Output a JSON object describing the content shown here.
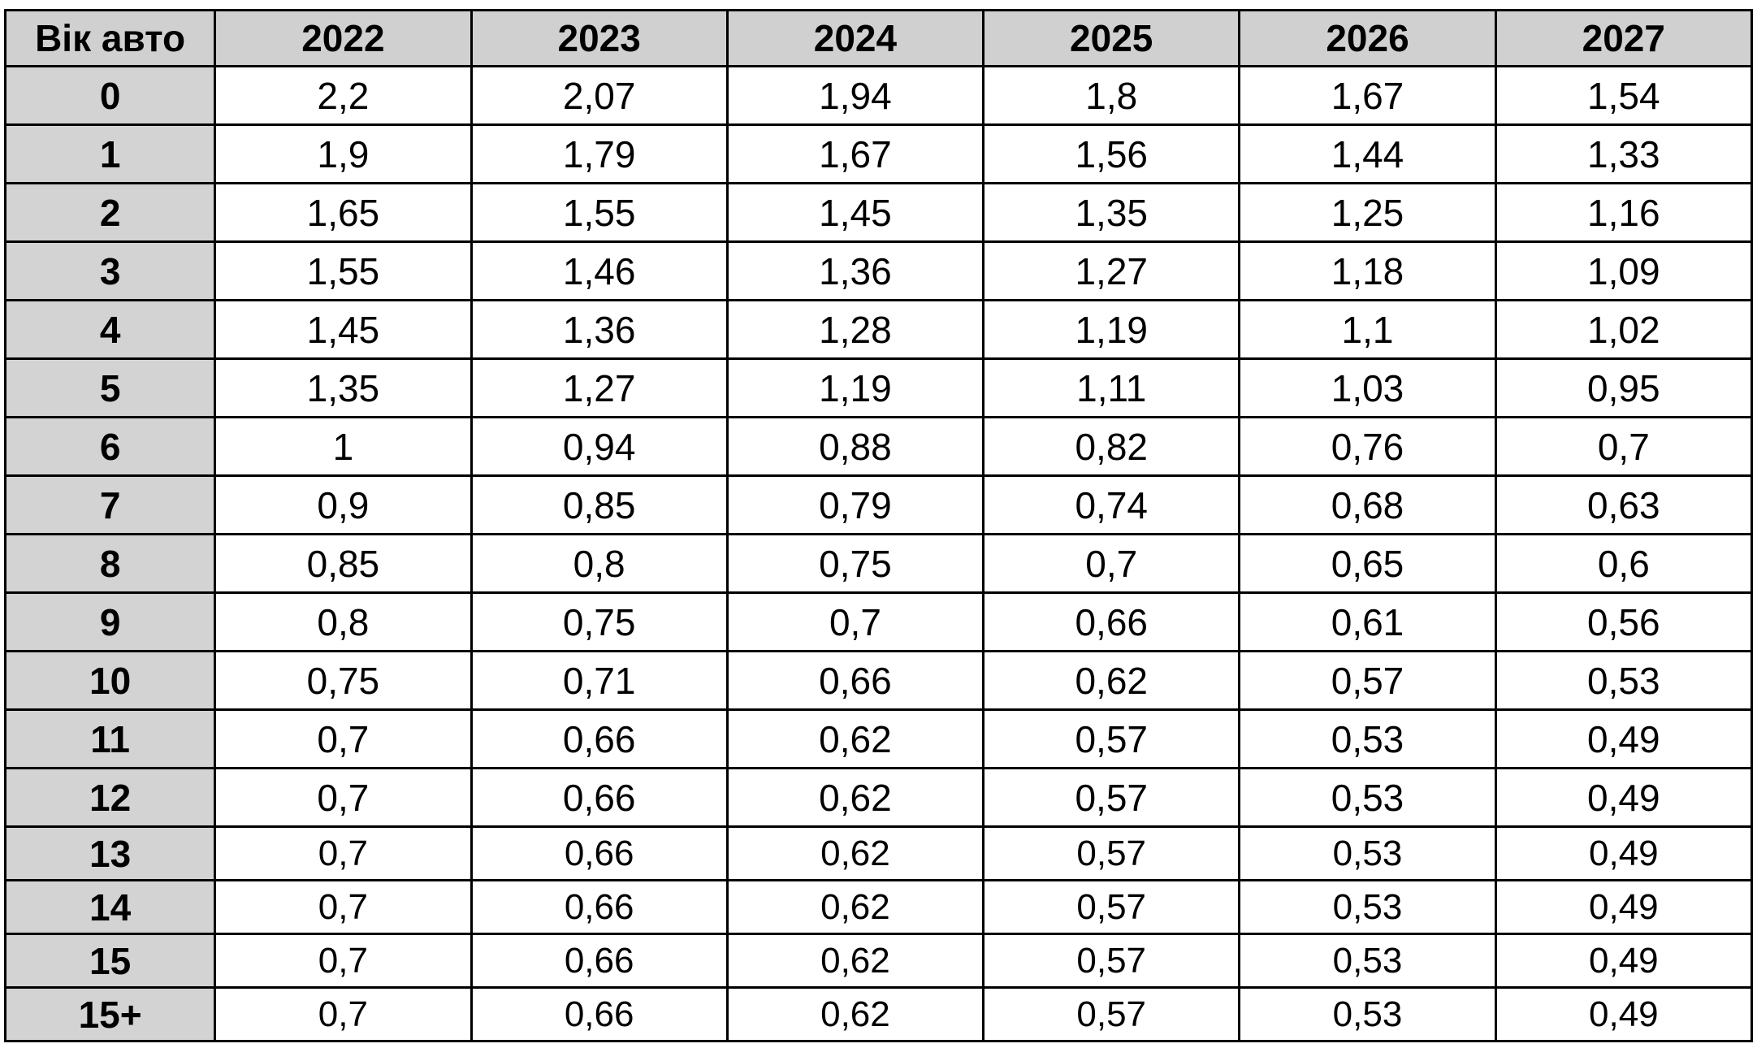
{
  "table": {
    "corner_header": "Вік авто",
    "years": [
      "2022",
      "2023",
      "2024",
      "2025",
      "2026",
      "2027"
    ],
    "rows": [
      {
        "age": "0",
        "values": [
          "2,2",
          "2,07",
          "1,94",
          "1,8",
          "1,67",
          "1,54"
        ]
      },
      {
        "age": "1",
        "values": [
          "1,9",
          "1,79",
          "1,67",
          "1,56",
          "1,44",
          "1,33"
        ]
      },
      {
        "age": "2",
        "values": [
          "1,65",
          "1,55",
          "1,45",
          "1,35",
          "1,25",
          "1,16"
        ]
      },
      {
        "age": "3",
        "values": [
          "1,55",
          "1,46",
          "1,36",
          "1,27",
          "1,18",
          "1,09"
        ]
      },
      {
        "age": "4",
        "values": [
          "1,45",
          "1,36",
          "1,28",
          "1,19",
          "1,1",
          "1,02"
        ]
      },
      {
        "age": "5",
        "values": [
          "1,35",
          "1,27",
          "1,19",
          "1,11",
          "1,03",
          "0,95"
        ]
      },
      {
        "age": "6",
        "values": [
          "1",
          "0,94",
          "0,88",
          "0,82",
          "0,76",
          "0,7"
        ]
      },
      {
        "age": "7",
        "values": [
          "0,9",
          "0,85",
          "0,79",
          "0,74",
          "0,68",
          "0,63"
        ]
      },
      {
        "age": "8",
        "values": [
          "0,85",
          "0,8",
          "0,75",
          "0,7",
          "0,65",
          "0,6"
        ]
      },
      {
        "age": "9",
        "values": [
          "0,8",
          "0,75",
          "0,7",
          "0,66",
          "0,61",
          "0,56"
        ]
      },
      {
        "age": "10",
        "values": [
          "0,75",
          "0,71",
          "0,66",
          "0,62",
          "0,57",
          "0,53"
        ]
      },
      {
        "age": "11",
        "values": [
          "0,7",
          "0,66",
          "0,62",
          "0,57",
          "0,53",
          "0,49"
        ]
      },
      {
        "age": "12",
        "values": [
          "0,7",
          "0,66",
          "0,62",
          "0,57",
          "0,53",
          "0,49"
        ]
      },
      {
        "age": "13",
        "values": [
          "0,7",
          "0,66",
          "0,62",
          "0,57",
          "0,53",
          "0,49"
        ]
      },
      {
        "age": "14",
        "values": [
          "0,7",
          "0,66",
          "0,62",
          "0,57",
          "0,53",
          "0,49"
        ]
      },
      {
        "age": "15",
        "values": [
          "0,7",
          "0,66",
          "0,62",
          "0,57",
          "0,53",
          "0,49"
        ]
      },
      {
        "age": "15+",
        "values": [
          "0,7",
          "0,66",
          "0,62",
          "0,57",
          "0,53",
          "0,49"
        ]
      }
    ]
  },
  "colors": {
    "header_fill": "#d0d0d0",
    "age_column_fill": "#d3d3d3",
    "cell_fill": "#ffffff",
    "border": "#000000"
  }
}
